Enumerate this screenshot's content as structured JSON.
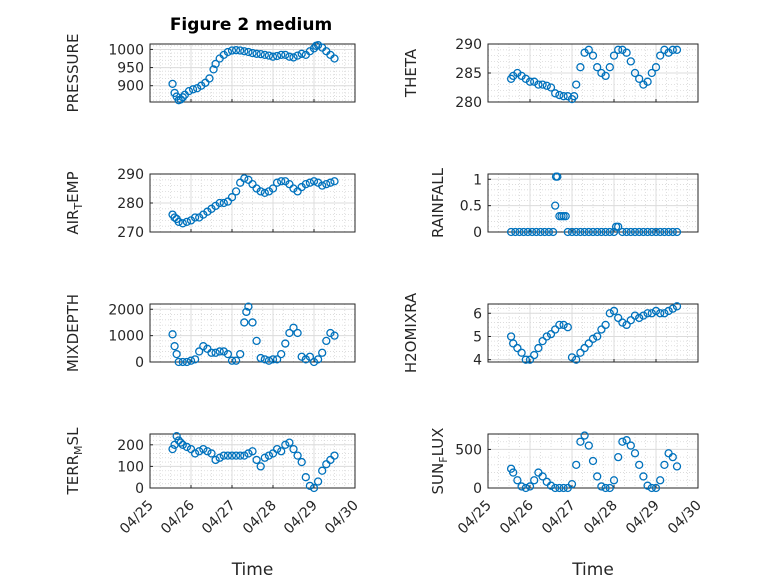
{
  "figure": {
    "title": "Figure 2 medium"
  },
  "chart_data": [
    {
      "id": "pressure",
      "type": "scatter",
      "ylabel": "PRESSURE",
      "ylim": [
        855,
        1015
      ],
      "yticks": [
        900,
        950,
        1000
      ],
      "xlim": [
        0,
        5
      ],
      "xticks": [
        "04/25",
        "04/26",
        "04/27",
        "04/28",
        "04/29",
        "04/30"
      ],
      "grid": true,
      "x": [
        0.55,
        0.6,
        0.65,
        0.7,
        0.75,
        0.8,
        0.85,
        0.95,
        1.05,
        1.15,
        1.25,
        1.35,
        1.45,
        1.55,
        1.6,
        1.7,
        1.8,
        1.9,
        2.0,
        2.1,
        2.2,
        2.3,
        2.4,
        2.5,
        2.6,
        2.7,
        2.8,
        2.9,
        3.0,
        3.1,
        3.2,
        3.3,
        3.4,
        3.5,
        3.6,
        3.7,
        3.8,
        3.9,
        4.0,
        4.05,
        4.1,
        4.2,
        4.3,
        4.4,
        4.5
      ],
      "y": [
        905,
        880,
        870,
        860,
        862,
        868,
        875,
        885,
        890,
        893,
        900,
        908,
        920,
        945,
        960,
        975,
        985,
        993,
        997,
        998,
        997,
        995,
        993,
        990,
        988,
        987,
        985,
        983,
        980,
        982,
        985,
        985,
        980,
        978,
        983,
        988,
        985,
        995,
        1003,
        1010,
        1012,
        1005,
        995,
        985,
        975
      ]
    },
    {
      "id": "theta",
      "type": "scatter",
      "ylabel": "THETA",
      "ylim": [
        280,
        290
      ],
      "yticks": [
        280,
        285,
        290
      ],
      "xlim": [
        0,
        5
      ],
      "xticks": [
        "04/25",
        "04/26",
        "04/27",
        "04/28",
        "04/29",
        "04/30"
      ],
      "grid": true,
      "x": [
        0.55,
        0.6,
        0.7,
        0.8,
        0.9,
        1.0,
        1.1,
        1.2,
        1.3,
        1.4,
        1.5,
        1.6,
        1.7,
        1.8,
        1.9,
        2.0,
        2.05,
        2.1,
        2.2,
        2.3,
        2.4,
        2.5,
        2.6,
        2.7,
        2.8,
        2.9,
        3.0,
        3.1,
        3.2,
        3.3,
        3.4,
        3.5,
        3.6,
        3.7,
        3.8,
        3.9,
        4.0,
        4.1,
        4.2,
        4.3,
        4.4,
        4.5
      ],
      "y": [
        284,
        284.5,
        285,
        284.5,
        284,
        283.5,
        283.5,
        283,
        283,
        282.8,
        282.5,
        281.5,
        281.2,
        281,
        281,
        280.5,
        281,
        283,
        286,
        288.5,
        289,
        288,
        286,
        285,
        284.5,
        286,
        288,
        289,
        289,
        288.5,
        287,
        285,
        284,
        283,
        283.5,
        285,
        286,
        288,
        289,
        288.5,
        289,
        289
      ]
    },
    {
      "id": "air_temp",
      "type": "scatter",
      "ylabel": "AIR_TEMP",
      "ylim": [
        270,
        290
      ],
      "yticks": [
        270,
        280,
        290
      ],
      "xlim": [
        0,
        5
      ],
      "xticks": [
        "04/25",
        "04/26",
        "04/27",
        "04/28",
        "04/29",
        "04/30"
      ],
      "grid": true,
      "x": [
        0.55,
        0.6,
        0.65,
        0.7,
        0.8,
        0.9,
        1.0,
        1.1,
        1.2,
        1.3,
        1.4,
        1.5,
        1.6,
        1.7,
        1.8,
        1.9,
        2.0,
        2.1,
        2.2,
        2.3,
        2.4,
        2.5,
        2.6,
        2.7,
        2.8,
        2.9,
        3.0,
        3.1,
        3.2,
        3.3,
        3.4,
        3.5,
        3.6,
        3.7,
        3.8,
        3.9,
        4.0,
        4.1,
        4.2,
        4.3,
        4.4,
        4.5
      ],
      "y": [
        276,
        275,
        274.5,
        273.5,
        273,
        273.5,
        274,
        275,
        275,
        276,
        277,
        278,
        279,
        280,
        280,
        280.5,
        282,
        284,
        287,
        288.5,
        288,
        286.5,
        285,
        284,
        283.5,
        284,
        285,
        287,
        287.5,
        287.5,
        286.5,
        285,
        284,
        285.5,
        286.5,
        287,
        287.5,
        287,
        286,
        286.5,
        287,
        287.5
      ]
    },
    {
      "id": "rainfall",
      "type": "scatter",
      "ylabel": "RAINFALL",
      "ylim": [
        0,
        1.1
      ],
      "yticks": [
        0,
        0.5,
        1
      ],
      "xlim": [
        0,
        5
      ],
      "xticks": [
        "04/25",
        "04/26",
        "04/27",
        "04/28",
        "04/29",
        "04/30"
      ],
      "grid": true,
      "x": [
        0.55,
        0.65,
        0.75,
        0.85,
        0.95,
        1.05,
        1.15,
        1.25,
        1.35,
        1.45,
        1.55,
        1.6,
        1.62,
        1.65,
        1.7,
        1.75,
        1.8,
        1.85,
        1.9,
        2.0,
        2.1,
        2.2,
        2.3,
        2.4,
        2.5,
        2.6,
        2.7,
        2.8,
        2.9,
        3.0,
        3.05,
        3.1,
        3.2,
        3.3,
        3.4,
        3.5,
        3.6,
        3.7,
        3.8,
        3.9,
        4.0,
        4.1,
        4.2,
        4.3,
        4.4,
        4.5
      ],
      "y": [
        0,
        0,
        0,
        0,
        0,
        0,
        0,
        0,
        0,
        0,
        0,
        0.5,
        1.05,
        1.05,
        0.3,
        0.3,
        0.3,
        0.3,
        0,
        0,
        0,
        0,
        0,
        0,
        0,
        0,
        0,
        0,
        0,
        0,
        0.1,
        0.1,
        0,
        0,
        0,
        0,
        0,
        0,
        0,
        0,
        0,
        0,
        0,
        0,
        0,
        0
      ]
    },
    {
      "id": "mixdepth",
      "type": "scatter",
      "ylabel": "MIXDEPTH",
      "ylim": [
        0,
        2200
      ],
      "yticks": [
        0,
        1000,
        2000
      ],
      "xlim": [
        0,
        5
      ],
      "xticks": [
        "04/25",
        "04/26",
        "04/27",
        "04/28",
        "04/29",
        "04/30"
      ],
      "grid": true,
      "x": [
        0.55,
        0.6,
        0.65,
        0.7,
        0.8,
        0.9,
        1.0,
        1.1,
        1.2,
        1.3,
        1.4,
        1.5,
        1.6,
        1.7,
        1.8,
        1.9,
        2.0,
        2.1,
        2.2,
        2.3,
        2.35,
        2.4,
        2.5,
        2.6,
        2.7,
        2.8,
        2.9,
        3.0,
        3.1,
        3.2,
        3.3,
        3.4,
        3.5,
        3.6,
        3.7,
        3.8,
        3.9,
        4.0,
        4.1,
        4.2,
        4.3,
        4.4,
        4.5
      ],
      "y": [
        1050,
        600,
        300,
        0,
        0,
        0,
        50,
        100,
        400,
        600,
        500,
        350,
        350,
        400,
        400,
        300,
        50,
        50,
        300,
        1500,
        1900,
        2100,
        1500,
        800,
        150,
        100,
        50,
        100,
        100,
        300,
        700,
        1100,
        1300,
        1100,
        200,
        100,
        200,
        0,
        100,
        350,
        800,
        1100,
        1000
      ]
    },
    {
      "id": "h2omixra",
      "type": "scatter",
      "ylabel": "H2OMIXRA",
      "ylim": [
        3.9,
        6.4
      ],
      "yticks": [
        4,
        5,
        6
      ],
      "xlim": [
        0,
        5
      ],
      "xticks": [
        "04/25",
        "04/26",
        "04/27",
        "04/28",
        "04/29",
        "04/30"
      ],
      "grid": true,
      "x": [
        0.55,
        0.6,
        0.7,
        0.8,
        0.9,
        1.0,
        1.1,
        1.2,
        1.3,
        1.4,
        1.5,
        1.6,
        1.7,
        1.8,
        1.9,
        2.0,
        2.1,
        2.2,
        2.3,
        2.4,
        2.5,
        2.6,
        2.7,
        2.8,
        2.9,
        3.0,
        3.1,
        3.2,
        3.3,
        3.4,
        3.5,
        3.6,
        3.7,
        3.8,
        3.9,
        4.0,
        4.1,
        4.2,
        4.3,
        4.4,
        4.5
      ],
      "y": [
        5.0,
        4.7,
        4.5,
        4.3,
        4.0,
        4.0,
        4.2,
        4.5,
        4.8,
        5.0,
        5.1,
        5.3,
        5.5,
        5.5,
        5.4,
        4.1,
        4.0,
        4.3,
        4.5,
        4.7,
        4.9,
        5.0,
        5.3,
        5.5,
        6.0,
        6.1,
        5.8,
        5.6,
        5.5,
        5.7,
        5.9,
        5.8,
        5.9,
        6.0,
        6.0,
        6.1,
        6.0,
        6.0,
        6.1,
        6.2,
        6.3
      ]
    },
    {
      "id": "terr_msl",
      "type": "scatter",
      "ylabel": "TERR_MSL",
      "ylim": [
        0,
        250
      ],
      "yticks": [
        0,
        100,
        200
      ],
      "xlim": [
        0,
        5
      ],
      "xticks": [
        "04/25",
        "04/26",
        "04/27",
        "04/28",
        "04/29",
        "04/30"
      ],
      "grid": true,
      "xlabel": "Time",
      "x": [
        0.55,
        0.6,
        0.65,
        0.7,
        0.75,
        0.8,
        0.9,
        1.0,
        1.1,
        1.2,
        1.3,
        1.4,
        1.5,
        1.6,
        1.7,
        1.8,
        1.9,
        2.0,
        2.1,
        2.2,
        2.3,
        2.4,
        2.5,
        2.6,
        2.7,
        2.8,
        2.9,
        3.0,
        3.1,
        3.2,
        3.3,
        3.4,
        3.5,
        3.6,
        3.7,
        3.8,
        3.9,
        4.0,
        4.1,
        4.2,
        4.3,
        4.4,
        4.5
      ],
      "y": [
        180,
        200,
        240,
        220,
        210,
        200,
        190,
        180,
        160,
        170,
        180,
        170,
        160,
        130,
        140,
        150,
        150,
        150,
        150,
        150,
        150,
        160,
        170,
        130,
        100,
        140,
        150,
        160,
        180,
        170,
        200,
        210,
        180,
        150,
        120,
        50,
        10,
        0,
        30,
        80,
        110,
        130,
        150
      ]
    },
    {
      "id": "sun_flux",
      "type": "scatter",
      "ylabel": "SUN_FLUX",
      "ylim": [
        0,
        700
      ],
      "yticks": [
        0,
        500
      ],
      "xlim": [
        0,
        5
      ],
      "xticks": [
        "04/25",
        "04/26",
        "04/27",
        "04/28",
        "04/29",
        "04/30"
      ],
      "grid": true,
      "xlabel": "Time",
      "x": [
        0.55,
        0.6,
        0.7,
        0.8,
        0.9,
        1.0,
        1.1,
        1.2,
        1.3,
        1.4,
        1.5,
        1.6,
        1.7,
        1.8,
        1.9,
        2.0,
        2.1,
        2.2,
        2.3,
        2.4,
        2.5,
        2.6,
        2.7,
        2.8,
        2.9,
        3.0,
        3.1,
        3.2,
        3.3,
        3.4,
        3.5,
        3.6,
        3.7,
        3.8,
        3.9,
        4.0,
        4.1,
        4.2,
        4.3,
        4.4,
        4.5
      ],
      "y": [
        250,
        200,
        100,
        20,
        0,
        20,
        100,
        200,
        150,
        80,
        30,
        0,
        0,
        0,
        0,
        50,
        300,
        600,
        680,
        550,
        350,
        150,
        20,
        0,
        0,
        100,
        400,
        600,
        620,
        550,
        450,
        300,
        150,
        30,
        0,
        0,
        100,
        300,
        450,
        400,
        280
      ]
    }
  ]
}
